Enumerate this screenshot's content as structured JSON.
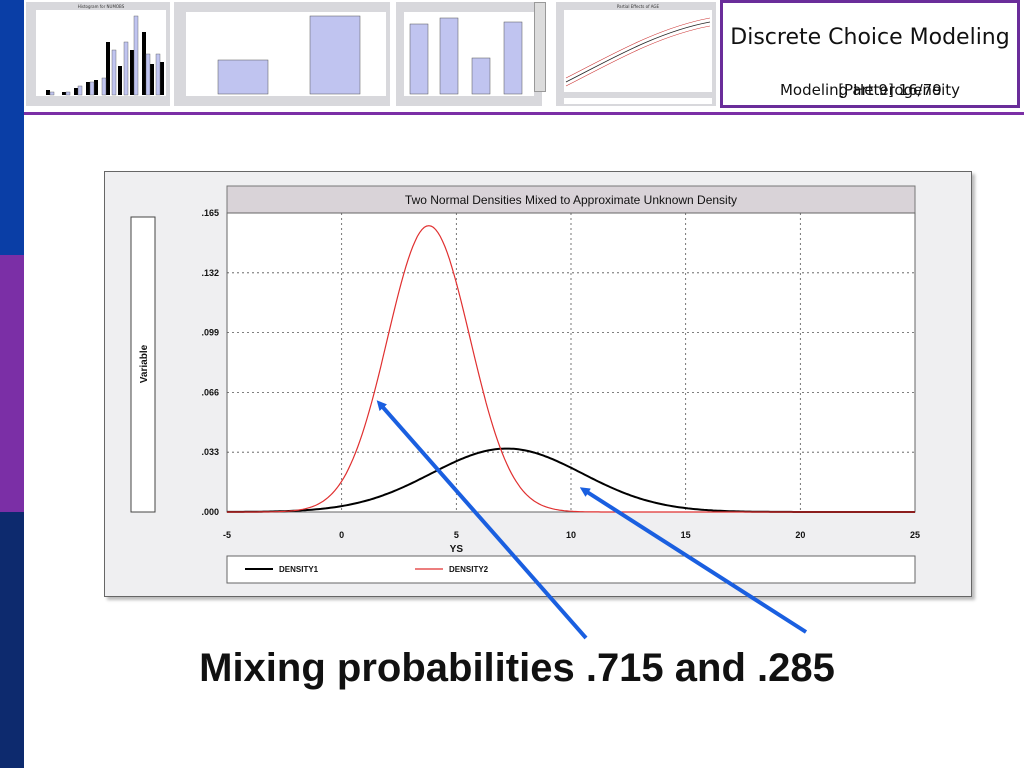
{
  "slide": {
    "title": "Discrete Choice Modeling",
    "subtitle": "Modeling Heterogeneity",
    "page": "[Part 9]    16/79"
  },
  "caption": "Mixing probabilities .715 and .285",
  "thumbnails": {
    "t1_title": "Histogram for NUMOBS",
    "t4_title": "Partial Effects of AGE"
  },
  "chart_data": {
    "type": "line",
    "title": "Two Normal Densities Mixed to Approximate Unknown Density",
    "xlabel": "YS",
    "ylabel": "Variable",
    "xlim": [
      -5,
      25
    ],
    "ylim": [
      0,
      0.165
    ],
    "x_ticks": [
      "-5",
      "0",
      "5",
      "10",
      "15",
      "20",
      "25"
    ],
    "y_ticks": [
      ".000",
      ".033",
      ".066",
      ".099",
      ".132",
      ".165"
    ],
    "grid": true,
    "legend_position": "bottom",
    "series": [
      {
        "name": "DENSITY1",
        "color": "#000000",
        "dist": {
          "mean": 7.2,
          "sd": 3.3
        },
        "peak": 0.035
      },
      {
        "name": "DENSITY2",
        "color": "#e03030",
        "dist": {
          "mean": 3.8,
          "sd": 1.8
        },
        "peak": 0.158
      }
    ]
  }
}
